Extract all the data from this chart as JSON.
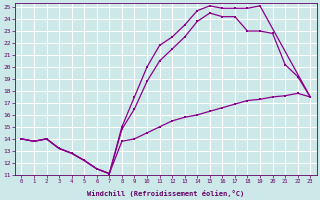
{
  "bg_color": "#cce8e8",
  "grid_color": "#ffffff",
  "line_color": "#8b008b",
  "xlabel": "Windchill (Refroidissement éolien,°C)",
  "xlim": [
    -0.5,
    23.5
  ],
  "ylim": [
    11,
    25.3
  ],
  "xticks": [
    0,
    1,
    2,
    3,
    4,
    5,
    6,
    7,
    8,
    9,
    10,
    11,
    12,
    13,
    14,
    15,
    16,
    17,
    18,
    19,
    20,
    21,
    22,
    23
  ],
  "yticks": [
    11,
    12,
    13,
    14,
    15,
    16,
    17,
    18,
    19,
    20,
    21,
    22,
    23,
    24,
    25
  ],
  "line1_x": [
    0,
    1,
    2,
    3,
    4,
    5,
    6,
    7,
    8,
    9,
    10,
    11,
    12,
    13,
    14,
    15,
    16,
    17,
    18,
    19,
    23
  ],
  "line1_y": [
    14.0,
    13.8,
    14.0,
    13.2,
    12.8,
    12.2,
    11.5,
    11.1,
    15.0,
    17.5,
    20.0,
    21.8,
    22.5,
    23.5,
    24.7,
    25.1,
    24.9,
    24.9,
    24.9,
    25.1,
    17.5
  ],
  "line2_x": [
    0,
    1,
    2,
    3,
    4,
    5,
    6,
    7,
    8,
    9,
    10,
    11,
    12,
    13,
    14,
    15,
    16,
    17,
    18,
    19,
    20,
    21,
    22,
    23
  ],
  "line2_y": [
    14.0,
    13.8,
    14.0,
    13.2,
    12.8,
    12.2,
    11.5,
    11.1,
    14.8,
    16.5,
    18.8,
    20.5,
    21.5,
    22.5,
    23.8,
    24.5,
    24.2,
    24.2,
    23.0,
    23.0,
    22.8,
    20.2,
    19.2,
    17.5
  ],
  "line3_x": [
    0,
    1,
    2,
    3,
    4,
    5,
    6,
    7,
    8,
    9,
    10,
    11,
    12,
    13,
    14,
    15,
    16,
    17,
    18,
    19,
    20,
    21,
    22,
    23
  ],
  "line3_y": [
    14.0,
    13.8,
    14.0,
    13.2,
    12.8,
    12.2,
    11.5,
    11.1,
    13.8,
    14.0,
    14.5,
    15.0,
    15.5,
    15.8,
    16.0,
    16.3,
    16.6,
    16.9,
    17.2,
    17.3,
    17.5,
    17.6,
    17.8,
    17.5
  ]
}
